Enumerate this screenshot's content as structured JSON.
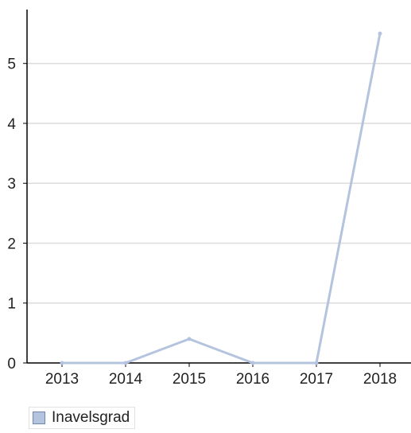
{
  "chart_data": {
    "type": "line",
    "categories": [
      "2013",
      "2014",
      "2015",
      "2016",
      "2017",
      "2018"
    ],
    "series": [
      {
        "name": "Inavelsgrad",
        "values": [
          0,
          0,
          0.4,
          0,
          0,
          5.5
        ],
        "color": "#b4c4de"
      }
    ],
    "y_ticks": [
      "0",
      "1",
      "2",
      "3",
      "4",
      "5"
    ],
    "ylim": [
      0,
      5.9
    ],
    "grid": true,
    "legend_position": "bottom-left",
    "colors": {
      "line": "#b4c4de",
      "grid": "#dcdcdc",
      "axis": "#000000",
      "swatch_fill": "#b4c4de",
      "swatch_border": "#6f86b0"
    }
  }
}
